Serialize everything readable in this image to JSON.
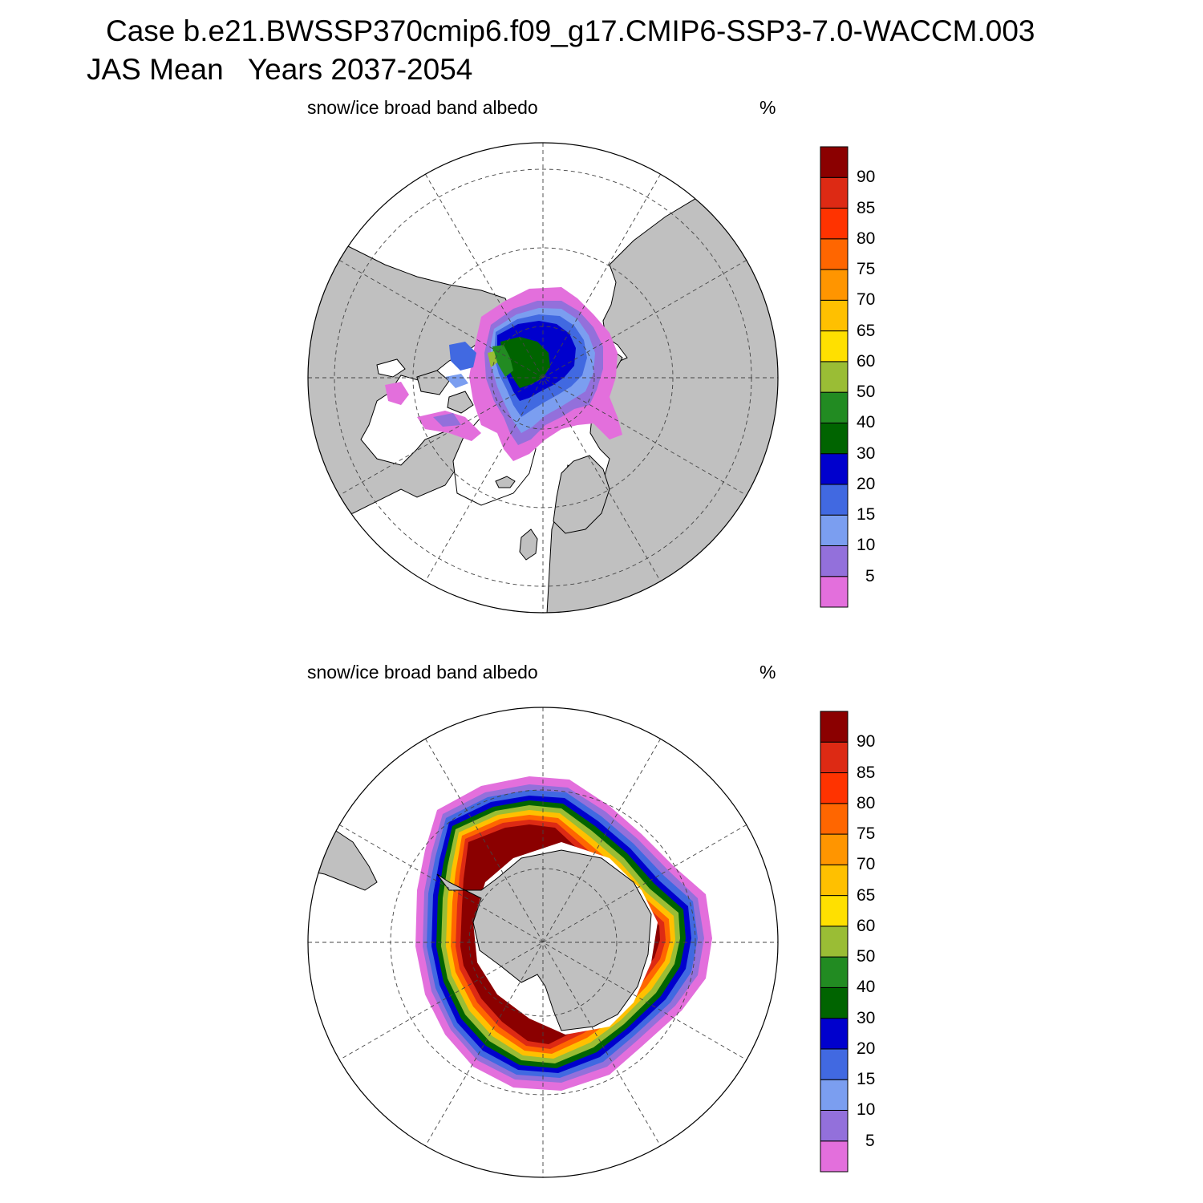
{
  "figure": {
    "title_line1": "Case b.e21.BWSSP370cmip6.f09_g17.CMIP6-SSP3-7.0-WACCM.003",
    "title_line2": "JAS Mean   Years 2037-2054"
  },
  "panels": [
    {
      "name": "north",
      "label": "snow/ice broad band albedo",
      "units": "%"
    },
    {
      "name": "south",
      "label": "snow/ice broad band albedo",
      "units": "%"
    }
  ],
  "colorbar": {
    "levels": [
      "5",
      "10",
      "15",
      "20",
      "30",
      "40",
      "50",
      "60",
      "65",
      "70",
      "75",
      "80",
      "85",
      "90"
    ],
    "colors": [
      "#e36fdc",
      "#9370db",
      "#7b9ef0",
      "#4169e1",
      "#0000cd",
      "#006400",
      "#228b22",
      "#9abd35",
      "#ffe000",
      "#ffc000",
      "#ff9500",
      "#ff6600",
      "#ff3300",
      "#dd2a14",
      "#8b0000"
    ]
  },
  "colors": {
    "land": "#c0c0c0",
    "ocean": "#ffffff",
    "coast": "#000000"
  }
}
